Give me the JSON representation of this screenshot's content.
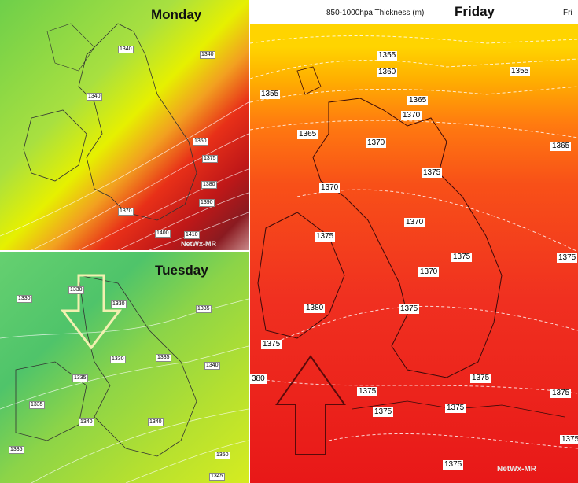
{
  "monday": {
    "title": "Monday",
    "contour_labels": [
      "1340",
      "1340",
      "1340",
      "1350",
      "1375",
      "1380",
      "1390",
      "1370",
      "1400",
      "1410"
    ],
    "credit": "NetWx-MR",
    "colors": {
      "low": "#78d24a",
      "mid": "#e8f000",
      "high": "#e02818",
      "peak": "#8a1a20"
    }
  },
  "tuesday": {
    "title": "Tuesday",
    "contour_labels": [
      "1330",
      "1330",
      "1330",
      "1335",
      "1330",
      "1335",
      "1340",
      "1335",
      "1335",
      "1340",
      "1340",
      "1335",
      "1350",
      "1345"
    ],
    "arrow_color": "#f2f0b0"
  },
  "friday": {
    "title": "Friday",
    "header": "850-1000hpa Thickness (m)",
    "header_right": "Fri",
    "contour_labels": [
      "1355",
      "1360",
      "1355",
      "1355",
      "1365",
      "1370",
      "1365",
      "1370",
      "1365",
      "1375",
      "1370",
      "1370",
      "1375",
      "1375",
      "1375",
      "1370",
      "1380",
      "1375",
      "1375",
      "380",
      "1375",
      "1375",
      "1375",
      "1375",
      "1375",
      "1375",
      "1375"
    ],
    "credit": "NetWx-MR",
    "arrow_color": "#5a0a0a"
  }
}
